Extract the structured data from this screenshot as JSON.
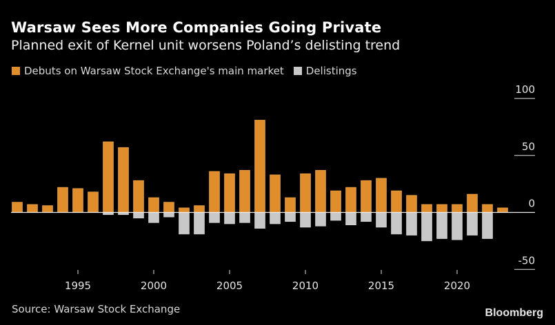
{
  "header": {
    "title": "Warsaw Sees More Companies Going Private",
    "subtitle": "Planned exit of Kernel unit worsens Poland’s delisting trend"
  },
  "footer": {
    "source": "Source: Warsaw Stock Exchange",
    "brand": "Bloomberg"
  },
  "colors": {
    "background": "#000000",
    "debuts": "#E08E2B",
    "delistings": "#C8C8C8",
    "axis": "#e6e6e6"
  },
  "chart_data": {
    "type": "bar",
    "title": "Warsaw Sees More Companies Going Private",
    "subtitle": "Planned exit of Kernel unit worsens Poland’s delisting trend",
    "xlabel": "",
    "ylabel": "",
    "ylim": [
      -50,
      100
    ],
    "y_ticks": [
      100,
      50,
      0,
      -50
    ],
    "y_tick_labels": [
      "100",
      "50",
      "0",
      "-50"
    ],
    "y_axis_side": "right",
    "x_ticks": [
      1995,
      2000,
      2005,
      2010,
      2015,
      2020
    ],
    "x_tick_labels": [
      "1995",
      "2000",
      "2005",
      "2010",
      "2015",
      "2020"
    ],
    "grid": false,
    "legend_position": "top-left",
    "categories": [
      1991,
      1992,
      1993,
      1994,
      1995,
      1996,
      1997,
      1998,
      1999,
      2000,
      2001,
      2002,
      2003,
      2004,
      2005,
      2006,
      2007,
      2008,
      2009,
      2010,
      2011,
      2012,
      2013,
      2014,
      2015,
      2016,
      2017,
      2018,
      2019,
      2020,
      2021,
      2022,
      2023
    ],
    "series": [
      {
        "name": "Debuts on Warsaw Stock Exchange's main market",
        "color": "#E08E2B",
        "values": [
          9,
          7,
          6,
          22,
          21,
          18,
          62,
          57,
          28,
          13,
          9,
          4,
          6,
          36,
          34,
          37,
          81,
          33,
          13,
          34,
          37,
          19,
          22,
          28,
          30,
          19,
          15,
          7,
          7,
          7,
          16,
          7,
          4
        ]
      },
      {
        "name": "Delistings",
        "color": "#C8C8C8",
        "values": [
          0,
          0,
          0,
          0,
          0,
          0,
          -2,
          -2,
          -5,
          -9,
          -4,
          -19,
          -19,
          -9,
          -10,
          -9,
          -14,
          -10,
          -8,
          -13,
          -12,
          -7,
          -11,
          -8,
          -13,
          -19,
          -20,
          -25,
          -23,
          -24,
          -20,
          -23,
          0
        ]
      }
    ]
  }
}
